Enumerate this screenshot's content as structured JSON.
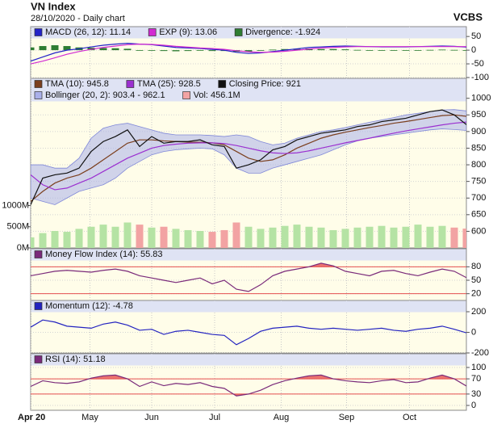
{
  "header": {
    "title": "VN Index",
    "subtitle": "28/10/2020 - Daily chart",
    "brand": "VCBS"
  },
  "x_axis": {
    "xlim": [
      0,
      36
    ],
    "xticks": [
      {
        "value": 0,
        "label": "Apr 20"
      },
      {
        "value": 4.9,
        "label": "May"
      },
      {
        "value": 10.0,
        "label": "Jun"
      },
      {
        "value": 15.2,
        "label": "Jul"
      },
      {
        "value": 20.7,
        "label": "Aug"
      },
      {
        "value": 26.1,
        "label": "Sep"
      },
      {
        "value": 31.3,
        "label": "Oct"
      }
    ]
  },
  "chart_data": [
    {
      "type": "line",
      "ylim": [
        -100,
        80
      ],
      "yticks": [
        50,
        0,
        -50,
        -100
      ],
      "grid": true,
      "series": [
        {
          "name": "MACD (26, 12): 11.14",
          "color": "#2323c8",
          "values": [
            -40,
            -25,
            -10,
            0,
            5,
            12,
            18,
            22,
            25,
            22,
            20,
            15,
            10,
            8,
            6,
            3,
            0,
            -8,
            -12,
            -10,
            -5,
            0,
            5,
            10,
            12,
            14,
            15,
            14,
            13,
            12,
            12,
            12,
            13,
            14,
            15,
            14,
            11.14
          ]
        },
        {
          "name": "EXP (9): 13.06",
          "color": "#d22ad2",
          "values": [
            -50,
            -40,
            -28,
            -15,
            -5,
            3,
            10,
            15,
            20,
            22,
            21,
            18,
            14,
            11,
            8,
            6,
            3,
            -2,
            -6,
            -8,
            -7,
            -4,
            0,
            4,
            8,
            10,
            12,
            13,
            13,
            13,
            13,
            13,
            13,
            13,
            13,
            13,
            13.06
          ]
        },
        {
          "name": "Divergence: -1.924",
          "color": "#2e7d32",
          "style": "bar",
          "values": [
            10,
            15,
            18,
            15,
            10,
            9,
            8,
            7,
            5,
            0,
            -1,
            -3,
            -4,
            -3,
            -2,
            -3,
            -3,
            -6,
            -6,
            -2,
            2,
            4,
            5,
            6,
            4,
            4,
            3,
            1,
            0,
            -1,
            -1,
            -1,
            0,
            1,
            2,
            1,
            -1.924
          ]
        }
      ]
    },
    {
      "type": "line",
      "ylim": [
        550,
        1060
      ],
      "yticks": [
        1000,
        950,
        900,
        850,
        800,
        750,
        700,
        650,
        600
      ],
      "grid": true,
      "y2lim": [
        0,
        4000
      ],
      "y2ticks": [
        {
          "value": 1000,
          "label": "1000M"
        },
        {
          "value": 500,
          "label": "500M"
        },
        {
          "value": 0,
          "label": "0M"
        }
      ],
      "series": [
        {
          "name": "TMA (10): 945.8",
          "color": "#7b3f1e",
          "values": [
            690,
            720,
            745,
            760,
            770,
            790,
            815,
            840,
            865,
            875,
            875,
            872,
            870,
            868,
            868,
            866,
            860,
            840,
            820,
            810,
            815,
            830,
            850,
            865,
            880,
            890,
            898,
            905,
            912,
            918,
            925,
            930,
            936,
            942,
            948,
            950,
            945.8
          ]
        },
        {
          "name": "TMA (25): 928.5",
          "color": "#9b30d0",
          "values": [
            770,
            740,
            725,
            730,
            745,
            760,
            780,
            800,
            820,
            835,
            850,
            858,
            862,
            865,
            866,
            866,
            864,
            858,
            850,
            842,
            836,
            834,
            836,
            842,
            850,
            858,
            866,
            873,
            880,
            888,
            895,
            902,
            908,
            914,
            920,
            925,
            928.5
          ]
        },
        {
          "name": "Closing Price: 921",
          "color": "#111111",
          "values": [
            680,
            760,
            770,
            775,
            790,
            840,
            870,
            885,
            905,
            855,
            885,
            865,
            870,
            870,
            875,
            860,
            855,
            790,
            800,
            815,
            845,
            855,
            875,
            885,
            895,
            900,
            905,
            915,
            920,
            930,
            935,
            940,
            950,
            960,
            965,
            950,
            921
          ]
        },
        {
          "name": "Bollinger (20, 2): 903.4 - 962.1",
          "color": "#aab0ea",
          "style": "band",
          "upper": [
            800,
            800,
            790,
            790,
            820,
            880,
            910,
            920,
            925,
            915,
            905,
            895,
            890,
            890,
            890,
            888,
            885,
            890,
            885,
            870,
            860,
            865,
            880,
            890,
            900,
            905,
            912,
            920,
            928,
            935,
            942,
            950,
            955,
            960,
            965,
            966,
            962.1
          ],
          "lower": [
            700,
            690,
            680,
            700,
            720,
            730,
            740,
            760,
            790,
            810,
            830,
            840,
            845,
            848,
            850,
            848,
            830,
            790,
            775,
            775,
            790,
            800,
            810,
            820,
            830,
            845,
            860,
            872,
            880,
            885,
            890,
            895,
            900,
            905,
            908,
            906,
            903.4
          ]
        },
        {
          "name": "Vol: 456.1M",
          "color": "#f2a3a3",
          "up_color": "#b5e3a4",
          "style": "bar",
          "axis": "y2",
          "values": [
            250,
            350,
            400,
            380,
            450,
            500,
            550,
            500,
            600,
            550,
            480,
            500,
            450,
            420,
            400,
            380,
            420,
            600,
            500,
            450,
            480,
            520,
            550,
            500,
            480,
            420,
            450,
            480,
            500,
            520,
            480,
            500,
            550,
            500,
            520,
            480,
            456.1
          ]
        }
      ]
    },
    {
      "type": "line",
      "ylim": [
        5,
        95
      ],
      "yticks": [
        80,
        50,
        20
      ],
      "grid": true,
      "highlight_above": 80,
      "highlight_below": 20,
      "highlight_color": "#e65050",
      "series": [
        {
          "name": "Money Flow Index (14): 55.83",
          "color": "#7a2a7a",
          "values": [
            60,
            65,
            70,
            72,
            70,
            68,
            72,
            75,
            70,
            60,
            55,
            50,
            45,
            50,
            55,
            42,
            50,
            30,
            25,
            40,
            60,
            70,
            75,
            80,
            88,
            82,
            70,
            65,
            60,
            70,
            72,
            65,
            60,
            68,
            75,
            70,
            55.83
          ]
        }
      ]
    },
    {
      "type": "line",
      "ylim": [
        -200,
        200
      ],
      "yticks": [
        200,
        0,
        -200
      ],
      "grid": true,
      "series": [
        {
          "name": "Momentum (12): -4.78",
          "color": "#2323c0",
          "values": [
            50,
            120,
            100,
            60,
            50,
            40,
            80,
            100,
            70,
            20,
            30,
            -20,
            10,
            20,
            0,
            -20,
            -30,
            -120,
            -60,
            10,
            40,
            50,
            60,
            40,
            30,
            40,
            30,
            20,
            30,
            40,
            20,
            10,
            30,
            40,
            60,
            30,
            -4.78
          ]
        }
      ]
    },
    {
      "type": "line",
      "ylim": [
        0,
        100
      ],
      "yticks": [
        100,
        70,
        30,
        0
      ],
      "grid": true,
      "highlight_above": 70,
      "highlight_below": 30,
      "highlight_color": "#e65050",
      "series": [
        {
          "name": "RSI (14): 51.18",
          "color": "#7a2a7a",
          "values": [
            50,
            65,
            60,
            58,
            62,
            72,
            78,
            80,
            70,
            50,
            62,
            52,
            58,
            55,
            60,
            50,
            45,
            25,
            30,
            40,
            55,
            65,
            72,
            78,
            80,
            70,
            65,
            62,
            60,
            65,
            68,
            60,
            62,
            72,
            80,
            70,
            51.18
          ]
        }
      ]
    }
  ]
}
